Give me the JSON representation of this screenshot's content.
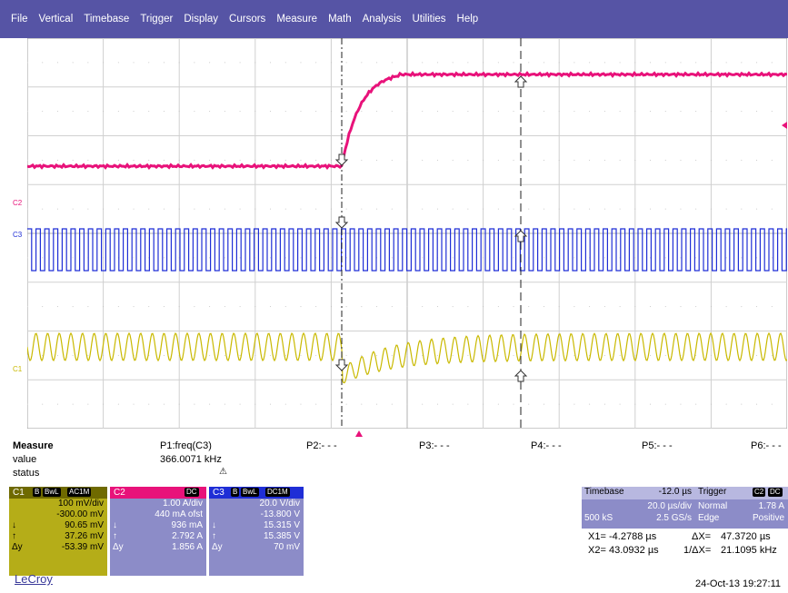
{
  "menu": [
    "File",
    "Vertical",
    "Timebase",
    "Trigger",
    "Display",
    "Cursors",
    "Measure",
    "Math",
    "Analysis",
    "Utilities",
    "Help"
  ],
  "colors": {
    "menubar": "#5654a5",
    "c1": "#c9b900",
    "c2": "#e8127a",
    "c3": "#1f2ed6",
    "panel": "#8c8cc8"
  },
  "trace_labels": {
    "c2": "C2",
    "c3": "C3",
    "c1": "C1"
  },
  "measure": {
    "title": "Measure",
    "row_value": "value",
    "row_status": "status",
    "p1": {
      "label": "P1:freq(C3)",
      "value": "366.0071 kHz",
      "status_icon": "warning-icon",
      "status_glyph": "⚠"
    },
    "p2": "P2:- - -",
    "p3": "P3:- - -",
    "p4": "P4:- - -",
    "p5": "P5:- - -",
    "p6": "P6:- - -"
  },
  "c1": {
    "name": "C1",
    "tags": [
      "B",
      "BwL",
      "AC1M"
    ],
    "vdiv": "100 mV/div",
    "offset": "-300.00 mV",
    "down_sym": "↓",
    "down": "90.65 mV",
    "up_sym": "↑",
    "up": "37.26 mV",
    "dy_sym": "Δy",
    "dy": "-53.39 mV"
  },
  "c2": {
    "name": "C2",
    "tags": [
      "DC"
    ],
    "vdiv": "1.00 A/div",
    "offset": "440 mA ofst",
    "down_sym": "↓",
    "down": "936 mA",
    "up_sym": "↑",
    "up": "2.792 A",
    "dy_sym": "Δy",
    "dy": "1.856 A"
  },
  "c3": {
    "name": "C3",
    "tags": [
      "B",
      "BwL",
      "DC1M"
    ],
    "vdiv": "20.0 V/div",
    "offset": "-13.800 V",
    "down_sym": "↓",
    "down": "15.315 V",
    "up_sym": "↑",
    "up": "15.385 V",
    "dy_sym": "Δy",
    "dy": "70 mV"
  },
  "timebase": {
    "label": "Timebase",
    "delay": "-12.0 µs",
    "tdiv": "20.0 µs/div",
    "samples": "500 kS",
    "rate": "2.5 GS/s"
  },
  "trigger": {
    "label": "Trigger",
    "tags": [
      "C2",
      "DC"
    ],
    "mode": "Normal",
    "level": "1.78 A",
    "type": "Edge",
    "slope": "Positive"
  },
  "cursors": {
    "x1_label": "X1=",
    "x1": "-4.2788 µs",
    "dx_label": "ΔX=",
    "dx": "47.3720 µs",
    "x2_label": "X2=",
    "x2": "43.0932 µs",
    "idx_label": "1/ΔX=",
    "idx": "21.1095 kHz"
  },
  "brand": "LeCroy",
  "datetime": "24-Oct-13 19:27:11"
}
